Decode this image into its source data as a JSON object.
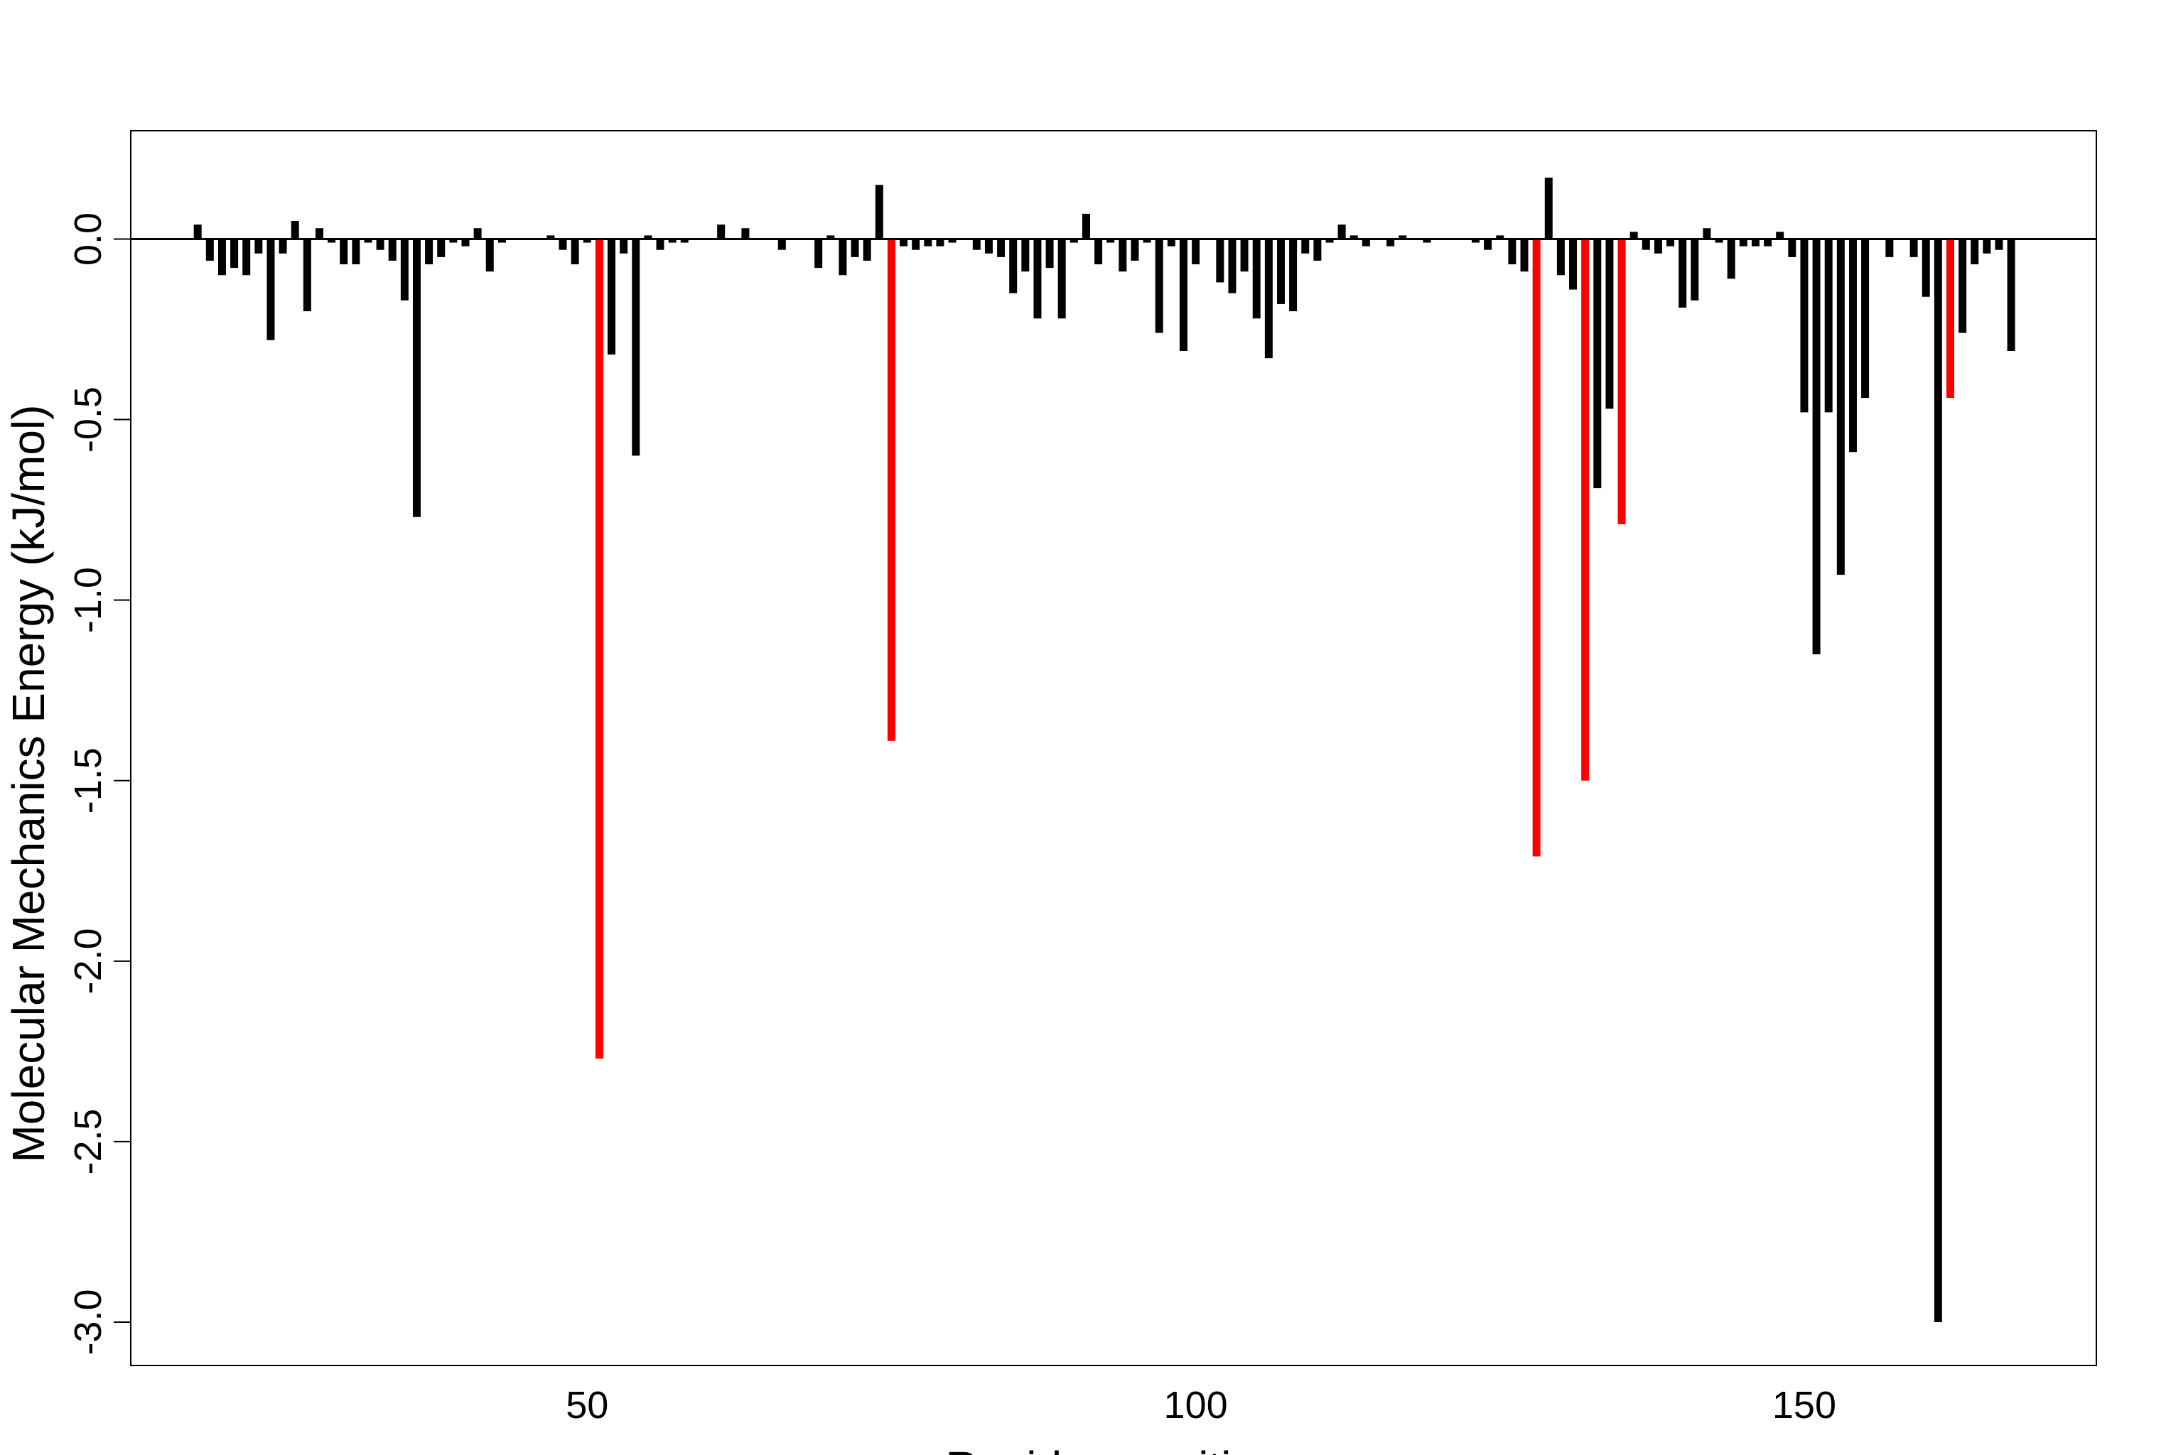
{
  "chart_data": {
    "type": "bar",
    "title": "",
    "xlabel": "Residue position",
    "ylabel": "Molecular Mechanics Energy (kJ/mol)",
    "xlim": [
      12.5,
      174
    ],
    "ylim": [
      -3.12,
      0.3
    ],
    "x_ticks": [
      50,
      100,
      150
    ],
    "y_ticks": [
      0.0,
      -0.5,
      -1.0,
      -1.5,
      -2.0,
      -2.5,
      -3.0
    ],
    "y_tick_labels": [
      "0.0",
      "-0.5",
      "-1.0",
      "-1.5",
      "-2.0",
      "-2.5",
      "-3.0"
    ],
    "grid": false,
    "legend": "none",
    "highlight_color": "#ff0000",
    "default_color": "#000000",
    "series": [
      {
        "x": [
          18,
          19,
          20,
          21,
          22,
          23,
          24,
          25,
          26,
          27,
          28,
          29,
          30,
          31,
          32,
          33,
          34,
          35,
          36,
          37,
          38,
          39,
          40,
          41,
          42,
          43,
          47,
          48,
          49,
          50,
          51,
          52,
          53,
          54,
          55,
          56,
          57,
          58,
          61,
          63,
          66,
          69,
          70,
          71,
          72,
          73,
          74,
          75,
          76,
          77,
          78,
          79,
          80,
          82,
          83,
          84,
          85,
          86,
          87,
          88,
          89,
          90,
          91,
          92,
          93,
          94,
          95,
          96,
          97,
          98,
          99,
          100,
          102,
          103,
          104,
          105,
          106,
          107,
          108,
          109,
          110,
          111,
          112,
          113,
          114,
          116,
          117,
          119,
          123,
          124,
          125,
          126,
          127,
          128,
          129,
          130,
          131,
          132,
          133,
          134,
          135,
          136,
          137,
          138,
          139,
          140,
          141,
          142,
          143,
          144,
          145,
          146,
          147,
          148,
          149,
          150,
          151,
          152,
          153,
          154,
          155,
          157,
          159,
          160,
          161,
          162,
          163,
          164,
          165,
          166,
          167
        ],
        "values": [
          0.04,
          -0.06,
          -0.1,
          -0.08,
          -0.1,
          -0.04,
          -0.28,
          -0.04,
          0.05,
          -0.2,
          0.03,
          -0.01,
          -0.07,
          -0.07,
          -0.01,
          -0.03,
          -0.06,
          -0.17,
          -0.77,
          -0.07,
          -0.05,
          -0.01,
          -0.02,
          0.03,
          -0.09,
          -0.01,
          0.01,
          -0.03,
          -0.07,
          -0.01,
          -2.27,
          -0.32,
          -0.04,
          -0.6,
          0.01,
          -0.03,
          -0.01,
          -0.01,
          0.04,
          0.03,
          -0.03,
          -0.08,
          0.01,
          -0.1,
          -0.05,
          -0.06,
          0.15,
          -1.39,
          -0.02,
          -0.03,
          -0.02,
          -0.02,
          -0.01,
          -0.03,
          -0.04,
          -0.05,
          -0.15,
          -0.09,
          -0.22,
          -0.08,
          -0.22,
          -0.01,
          0.07,
          -0.07,
          -0.01,
          -0.09,
          -0.06,
          -0.01,
          -0.26,
          -0.02,
          -0.31,
          -0.07,
          -0.12,
          -0.15,
          -0.09,
          -0.22,
          -0.33,
          -0.18,
          -0.2,
          -0.04,
          -0.06,
          -0.01,
          0.04,
          0.01,
          -0.02,
          -0.02,
          0.01,
          -0.01,
          -0.01,
          -0.03,
          0.01,
          -0.07,
          -0.09,
          -1.71,
          0.17,
          -0.1,
          -0.14,
          -1.5,
          -0.69,
          -0.47,
          -0.79,
          0.02,
          -0.03,
          -0.04,
          -0.02,
          -0.19,
          -0.17,
          0.03,
          -0.01,
          -0.11,
          -0.02,
          -0.02,
          -0.02,
          0.02,
          -0.05,
          -0.48,
          -1.15,
          -0.48,
          -0.93,
          -0.59,
          -0.44,
          -0.05,
          -0.05,
          -0.16,
          -3.0,
          -0.44,
          -0.26,
          -0.07,
          -0.04,
          -0.03,
          -0.31
        ],
        "highlighted_x": [
          51,
          75,
          128,
          132,
          135,
          162
        ]
      }
    ]
  }
}
